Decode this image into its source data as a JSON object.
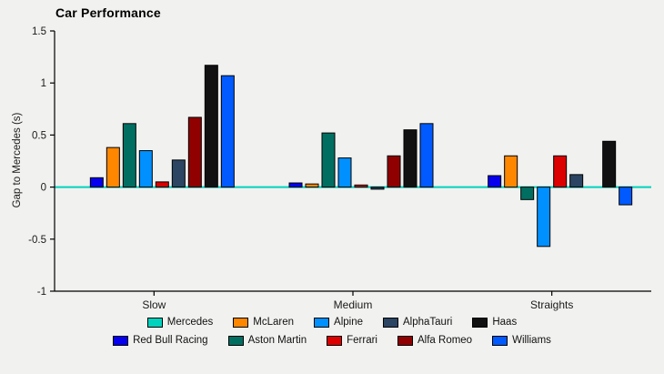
{
  "chart_data": {
    "type": "bar",
    "title": "Car Performance",
    "ylabel": "Gap to Mercedes (s)",
    "categories": [
      "Slow",
      "Medium",
      "Straights"
    ],
    "ylim": [
      -1,
      1.5
    ],
    "yticks": [
      -1,
      -0.5,
      0,
      0.5,
      1,
      1.5
    ],
    "zero_line_color": "#00D2BE",
    "axis_color": "#000000",
    "grid": false,
    "legend_position": "bottom",
    "legend_rows": [
      [
        "Mercedes",
        "McLaren",
        "Alpine",
        "AlphaTauri",
        "Haas"
      ],
      [
        "Red Bull Racing",
        "Aston Martin",
        "Ferrari",
        "Alfa Romeo",
        "Williams"
      ]
    ],
    "series": [
      {
        "name": "Mercedes",
        "color": "#00D2BE",
        "values": [
          0,
          0,
          0
        ]
      },
      {
        "name": "Red Bull Racing",
        "color": "#0600EF",
        "values": [
          0.09,
          0.04,
          0.11
        ]
      },
      {
        "name": "McLaren",
        "color": "#FF8700",
        "values": [
          0.38,
          0.03,
          0.3
        ]
      },
      {
        "name": "Aston Martin",
        "color": "#006F62",
        "values": [
          0.61,
          0.52,
          -0.12
        ]
      },
      {
        "name": "Alpine",
        "color": "#0090FF",
        "values": [
          0.35,
          0.28,
          -0.57
        ]
      },
      {
        "name": "Ferrari",
        "color": "#DC0000",
        "values": [
          0.05,
          0.02,
          0.3
        ]
      },
      {
        "name": "AlphaTauri",
        "color": "#2B4562",
        "values": [
          0.26,
          -0.02,
          0.12
        ]
      },
      {
        "name": "Alfa Romeo",
        "color": "#900000",
        "values": [
          0.67,
          0.3,
          0
        ]
      },
      {
        "name": "Haas",
        "color": "#111111",
        "values": [
          1.17,
          0.55,
          0.44
        ]
      },
      {
        "name": "Williams",
        "color": "#005AFF",
        "values": [
          1.07,
          0.61,
          -0.17
        ]
      }
    ]
  }
}
